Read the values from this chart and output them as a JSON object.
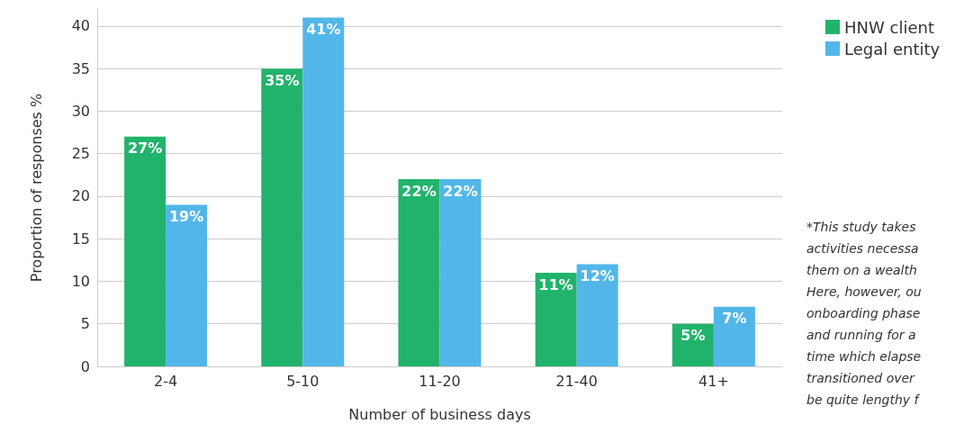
{
  "chart_data": {
    "type": "bar",
    "xlabel": "Number of business days",
    "ylabel": "Proportion of responses %",
    "categories": [
      "2-4",
      "5-10",
      "11-20",
      "21-40",
      "41+"
    ],
    "series": [
      {
        "name": "HNW client",
        "color": "#21b36b",
        "values": [
          27,
          35,
          22,
          11,
          5
        ],
        "value_labels": [
          "27%",
          "35%",
          "22%",
          "11%",
          "5%"
        ]
      },
      {
        "name": "Legal entity",
        "color": "#52b7e8",
        "values": [
          19,
          41,
          22,
          12,
          7
        ],
        "value_labels": [
          "19%",
          "41%",
          "22%",
          "12%",
          "7%"
        ]
      }
    ],
    "ylim": [
      0,
      42
    ],
    "yticks": [
      0,
      5,
      10,
      15,
      20,
      25,
      30,
      35,
      40
    ],
    "grid": "y",
    "legend": "top right",
    "annotations": [
      "*This study takes\nactivities necessa\nthem on a wealth\nHere, however, ou\nonboarding phase\nand running for a\ntime which elapse\ntransitioned over\nbe quite lengthy f"
    ]
  }
}
